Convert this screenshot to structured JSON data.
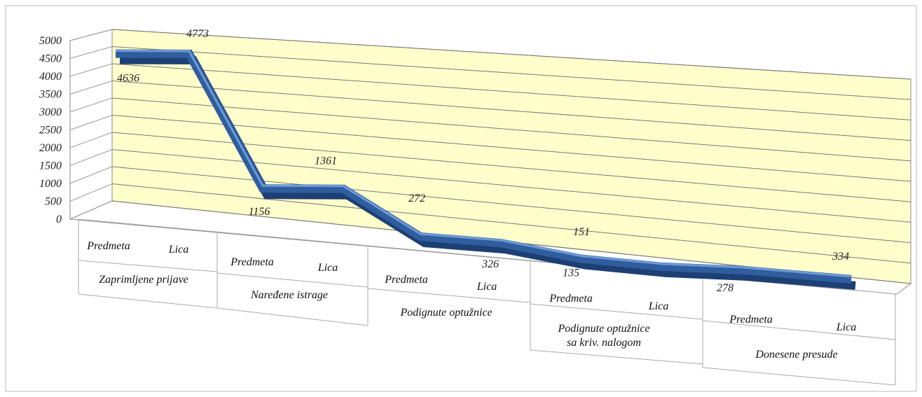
{
  "chart_data": {
    "type": "line",
    "categories": [
      "Predmeta",
      "Lica",
      "Predmeta",
      "Lica",
      "Predmeta",
      "Lica",
      "Predmeta",
      "Lica",
      "Predmeta",
      "Lica"
    ],
    "category_groups": [
      "Zaprimljene prijave",
      "Naređene istrage",
      "Podignute optužnice",
      "Podignute optužnice\nsa kriv. nalogom",
      "Donesene presude"
    ],
    "values": [
      4636,
      4773,
      1156,
      1361,
      272,
      326,
      135,
      151,
      278,
      334
    ],
    "color": "#2f5d9e",
    "ylim": [
      0,
      5000
    ],
    "yticks": [
      0,
      500,
      1000,
      1500,
      2000,
      2500,
      3000,
      3500,
      4000,
      4500,
      5000
    ],
    "grid": true
  }
}
